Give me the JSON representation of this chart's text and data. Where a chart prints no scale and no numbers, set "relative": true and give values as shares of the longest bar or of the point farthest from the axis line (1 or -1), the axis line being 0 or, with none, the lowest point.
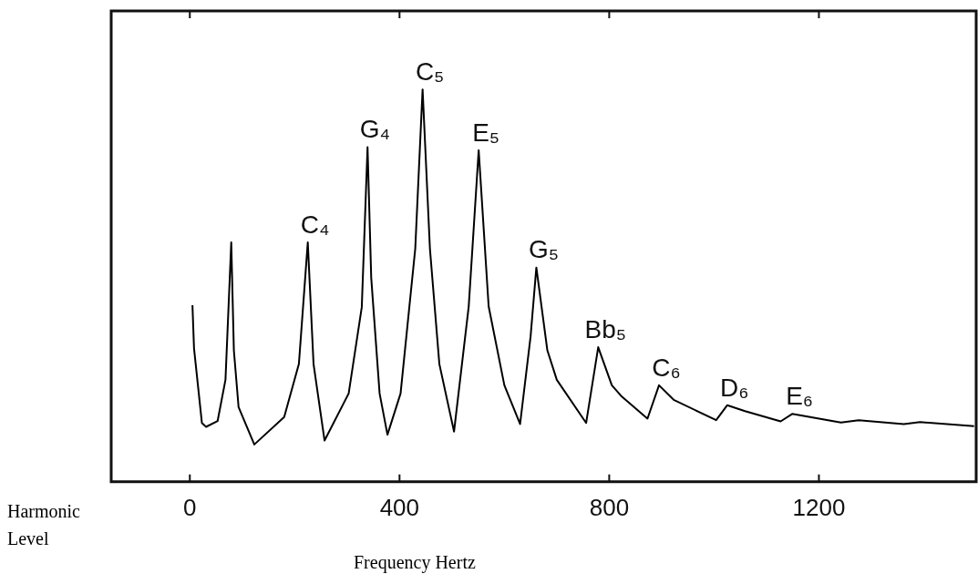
{
  "chart_data": {
    "type": "line",
    "relative": true,
    "xlabel": "Frequency Hertz",
    "ylabel": "Harmonic Level",
    "color": "#000000",
    "marker": "none",
    "grid": false,
    "legend": false,
    "x": [
      5,
      8,
      23,
      31,
      53,
      68,
      79,
      84,
      93,
      123,
      180,
      208,
      225,
      236,
      257,
      303,
      328,
      339,
      346,
      362,
      377,
      402,
      430,
      444,
      458,
      476,
      504,
      532,
      551,
      570,
      600,
      630,
      650,
      661,
      682,
      700,
      756,
      779,
      805,
      824,
      873,
      895,
      923,
      1004,
      1025,
      1059,
      1127,
      1149,
      1242,
      1276,
      1362,
      1393,
      1496
    ],
    "values": [
      0.45,
      0.34,
      0.15,
      0.14,
      0.155,
      0.26,
      0.61,
      0.335,
      0.19,
      0.095,
      0.165,
      0.3,
      0.61,
      0.3,
      0.105,
      0.225,
      0.445,
      0.853,
      0.52,
      0.225,
      0.12,
      0.225,
      0.594,
      1,
      0.594,
      0.3,
      0.128,
      0.447,
      0.845,
      0.447,
      0.246,
      0.147,
      0.37,
      0.546,
      0.335,
      0.26,
      0.15,
      0.343,
      0.246,
      0.217,
      0.161,
      0.246,
      0.209,
      0.157,
      0.195,
      0.18,
      0.154,
      0.173,
      0.151,
      0.157,
      0.147,
      0.152,
      0.142
    ],
    "xlim": [
      -150,
      1500
    ],
    "xticks": [
      0,
      400,
      800,
      1200
    ],
    "annotations": [
      {
        "text": "C₄",
        "x": 225,
        "y": 0.61
      },
      {
        "text": "G₄",
        "x": 339,
        "y": 0.853
      },
      {
        "text": "C₅",
        "x": 444,
        "y": 1
      },
      {
        "text": "E₅",
        "x": 551,
        "y": 0.845
      },
      {
        "text": "G₅",
        "x": 661,
        "y": 0.546
      },
      {
        "text": "Bb₅",
        "x": 779,
        "y": 0.343
      },
      {
        "text": "C₆",
        "x": 895,
        "y": 0.246
      },
      {
        "text": "D₆",
        "x": 1025,
        "y": 0.195
      },
      {
        "text": "E₆",
        "x": 1149,
        "y": 0.173
      }
    ]
  }
}
